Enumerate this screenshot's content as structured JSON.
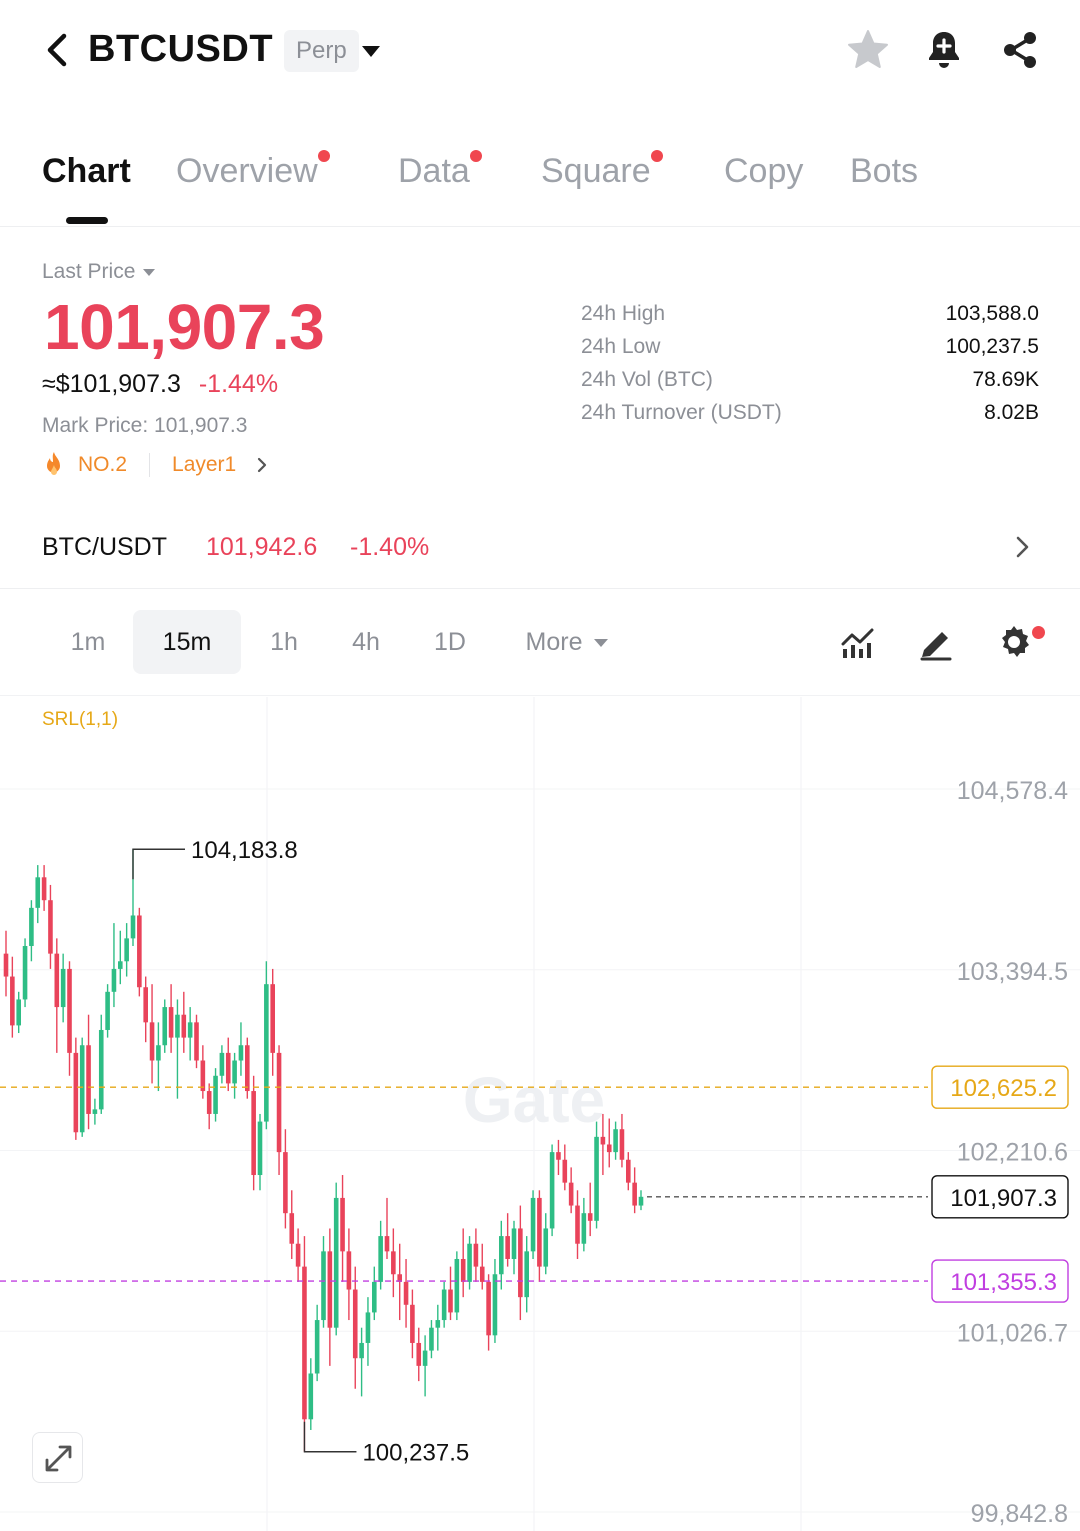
{
  "header": {
    "symbol": "BTCUSDT",
    "badge": "Perp",
    "icons": [
      "back-icon",
      "chevron-down-icon",
      "star-icon",
      "bell-plus-icon",
      "share-icon"
    ]
  },
  "tabs": [
    {
      "label": "Chart",
      "active": true,
      "dot": false
    },
    {
      "label": "Overview",
      "active": false,
      "dot": true
    },
    {
      "label": "Data",
      "active": false,
      "dot": true
    },
    {
      "label": "Square",
      "active": false,
      "dot": true
    },
    {
      "label": "Copy",
      "active": false,
      "dot": false
    },
    {
      "label": "Bots",
      "active": false,
      "dot": false
    }
  ],
  "ticker": {
    "last_price_label": "Last Price",
    "last_price": "101,907.3",
    "fiat_price": "≈$101,907.3",
    "change": "-1.44%",
    "mark_price": "Mark Price: 101,907.3",
    "rank": "NO.2",
    "sector": "Layer1",
    "stats": [
      {
        "label": "24h High",
        "value": "103,588.0"
      },
      {
        "label": "24h Low",
        "value": "100,237.5"
      },
      {
        "label": "24h Vol (BTC)",
        "value": "78.69K"
      },
      {
        "label": "24h Turnover (USDT)",
        "value": "8.02B"
      }
    ]
  },
  "spot": {
    "name": "BTC/USDT",
    "price": "101,942.6",
    "change": "-1.40%"
  },
  "intervals": {
    "items": [
      "1m",
      "15m",
      "1h",
      "4h",
      "1D"
    ],
    "active": "15m",
    "more_label": "More"
  },
  "colors": {
    "up": "#2ebd85",
    "down": "#e9435a",
    "accent_yellow": "#e6a817",
    "accent_purple": "#c03ee0"
  },
  "chart_data": {
    "type": "candlestick",
    "indicator_label": "SRL(1,1)",
    "watermark": "Gate",
    "interval": "15m",
    "y_ticks": [
      104578.4,
      103394.5,
      102210.6,
      101026.7,
      99842.8
    ],
    "y_tick_labels": [
      "104,578.4",
      "103,394.5",
      "102,210.6",
      "101,026.7",
      "99,842.8"
    ],
    "ylim": [
      99842.8,
      104578.4
    ],
    "high_marker": {
      "value": 104183.8,
      "label": "104,183.8"
    },
    "low_marker": {
      "value": 100237.5,
      "label": "100,237.5"
    },
    "price_lines": [
      {
        "value": 102625.2,
        "label": "102,625.2",
        "color": "#e6a817",
        "style": "dashed"
      },
      {
        "value": 101907.3,
        "label": "101,907.3",
        "color": "#111111",
        "style": "current"
      },
      {
        "value": 101355.3,
        "label": "101,355.3",
        "color": "#c03ee0",
        "style": "dashed"
      }
    ],
    "candles": [
      {
        "o": 103500,
        "h": 103650,
        "l": 103220,
        "c": 103350
      },
      {
        "o": 103350,
        "h": 103480,
        "l": 102950,
        "c": 103030
      },
      {
        "o": 103030,
        "h": 103250,
        "l": 102980,
        "c": 103200
      },
      {
        "o": 103200,
        "h": 103600,
        "l": 103150,
        "c": 103550
      },
      {
        "o": 103550,
        "h": 103850,
        "l": 103450,
        "c": 103800
      },
      {
        "o": 103800,
        "h": 104080,
        "l": 103700,
        "c": 104000
      },
      {
        "o": 104000,
        "h": 104080,
        "l": 103780,
        "c": 103850
      },
      {
        "o": 103850,
        "h": 103950,
        "l": 103400,
        "c": 103500
      },
      {
        "o": 103500,
        "h": 103600,
        "l": 102850,
        "c": 103150
      },
      {
        "o": 103150,
        "h": 103500,
        "l": 103050,
        "c": 103400
      },
      {
        "o": 103400,
        "h": 103450,
        "l": 102700,
        "c": 102850
      },
      {
        "o": 102850,
        "h": 102950,
        "l": 102280,
        "c": 102330
      },
      {
        "o": 102330,
        "h": 102950,
        "l": 102300,
        "c": 102900
      },
      {
        "o": 102900,
        "h": 103100,
        "l": 102350,
        "c": 102450
      },
      {
        "o": 102450,
        "h": 102550,
        "l": 102380,
        "c": 102480
      },
      {
        "o": 102480,
        "h": 103100,
        "l": 102450,
        "c": 103000
      },
      {
        "o": 103000,
        "h": 103300,
        "l": 102950,
        "c": 103250
      },
      {
        "o": 103250,
        "h": 103700,
        "l": 103150,
        "c": 103400
      },
      {
        "o": 103400,
        "h": 103650,
        "l": 103300,
        "c": 103450
      },
      {
        "o": 103450,
        "h": 103700,
        "l": 103350,
        "c": 103600
      },
      {
        "o": 103600,
        "h": 104183.8,
        "l": 103550,
        "c": 103750
      },
      {
        "o": 103750,
        "h": 103800,
        "l": 103220,
        "c": 103280
      },
      {
        "o": 103280,
        "h": 103350,
        "l": 102920,
        "c": 103050
      },
      {
        "o": 103050,
        "h": 103300,
        "l": 102650,
        "c": 102800
      },
      {
        "o": 102800,
        "h": 103050,
        "l": 102600,
        "c": 102900
      },
      {
        "o": 102900,
        "h": 103200,
        "l": 102850,
        "c": 103150
      },
      {
        "o": 103150,
        "h": 103300,
        "l": 102850,
        "c": 102950
      },
      {
        "o": 102950,
        "h": 103200,
        "l": 102550,
        "c": 103100
      },
      {
        "o": 103100,
        "h": 103250,
        "l": 102850,
        "c": 102950
      },
      {
        "o": 102950,
        "h": 103150,
        "l": 102800,
        "c": 103050
      },
      {
        "o": 103050,
        "h": 103100,
        "l": 102750,
        "c": 102800
      },
      {
        "o": 102800,
        "h": 102900,
        "l": 102550,
        "c": 102600
      },
      {
        "o": 102600,
        "h": 102650,
        "l": 102350,
        "c": 102450
      },
      {
        "o": 102450,
        "h": 102750,
        "l": 102400,
        "c": 102700
      },
      {
        "o": 102700,
        "h": 102900,
        "l": 102650,
        "c": 102850
      },
      {
        "o": 102850,
        "h": 102950,
        "l": 102600,
        "c": 102650
      },
      {
        "o": 102650,
        "h": 102850,
        "l": 102550,
        "c": 102800
      },
      {
        "o": 102800,
        "h": 103050,
        "l": 102700,
        "c": 102900
      },
      {
        "o": 102900,
        "h": 102950,
        "l": 102550,
        "c": 102600
      },
      {
        "o": 102600,
        "h": 102700,
        "l": 101950,
        "c": 102050
      },
      {
        "o": 102050,
        "h": 102450,
        "l": 101950,
        "c": 102400
      },
      {
        "o": 102400,
        "h": 103450,
        "l": 102350,
        "c": 103300
      },
      {
        "o": 103300,
        "h": 103400,
        "l": 102700,
        "c": 102850
      },
      {
        "o": 102850,
        "h": 102900,
        "l": 102050,
        "c": 102200
      },
      {
        "o": 102200,
        "h": 102350,
        "l": 101700,
        "c": 101800
      },
      {
        "o": 101800,
        "h": 101950,
        "l": 101500,
        "c": 101600
      },
      {
        "o": 101600,
        "h": 101700,
        "l": 101350,
        "c": 101450
      },
      {
        "o": 101450,
        "h": 101650,
        "l": 100237.5,
        "c": 100450
      },
      {
        "o": 100450,
        "h": 100850,
        "l": 100380,
        "c": 100750
      },
      {
        "o": 100750,
        "h": 101200,
        "l": 100700,
        "c": 101100
      },
      {
        "o": 101100,
        "h": 101650,
        "l": 101050,
        "c": 101550
      },
      {
        "o": 101550,
        "h": 101700,
        "l": 100800,
        "c": 101050
      },
      {
        "o": 101050,
        "h": 102000,
        "l": 101000,
        "c": 101900
      },
      {
        "o": 101900,
        "h": 102050,
        "l": 101350,
        "c": 101550
      },
      {
        "o": 101550,
        "h": 101700,
        "l": 101100,
        "c": 101300
      },
      {
        "o": 101300,
        "h": 101450,
        "l": 100650,
        "c": 100850
      },
      {
        "o": 100850,
        "h": 101050,
        "l": 100600,
        "c": 100950
      },
      {
        "o": 100950,
        "h": 101250,
        "l": 100800,
        "c": 101150
      },
      {
        "o": 101150,
        "h": 101450,
        "l": 101100,
        "c": 101350
      },
      {
        "o": 101350,
        "h": 101750,
        "l": 101300,
        "c": 101650
      },
      {
        "o": 101650,
        "h": 101900,
        "l": 101500,
        "c": 101550
      },
      {
        "o": 101550,
        "h": 101700,
        "l": 101250,
        "c": 101400
      },
      {
        "o": 101400,
        "h": 101600,
        "l": 101100,
        "c": 101350
      },
      {
        "o": 101350,
        "h": 101500,
        "l": 101050,
        "c": 101200
      },
      {
        "o": 101200,
        "h": 101300,
        "l": 100850,
        "c": 100950
      },
      {
        "o": 100950,
        "h": 101050,
        "l": 100700,
        "c": 100800
      },
      {
        "o": 100800,
        "h": 101000,
        "l": 100600,
        "c": 100900
      },
      {
        "o": 100900,
        "h": 101100,
        "l": 100850,
        "c": 101050
      },
      {
        "o": 101050,
        "h": 101200,
        "l": 100900,
        "c": 101100
      },
      {
        "o": 101100,
        "h": 101350,
        "l": 101050,
        "c": 101300
      },
      {
        "o": 101300,
        "h": 101450,
        "l": 101100,
        "c": 101150
      },
      {
        "o": 101150,
        "h": 101550,
        "l": 101100,
        "c": 101500
      },
      {
        "o": 101500,
        "h": 101700,
        "l": 101250,
        "c": 101350
      },
      {
        "o": 101350,
        "h": 101650,
        "l": 101300,
        "c": 101600
      },
      {
        "o": 101600,
        "h": 101700,
        "l": 101350,
        "c": 101450
      },
      {
        "o": 101450,
        "h": 101600,
        "l": 101300,
        "c": 101350
      },
      {
        "o": 101350,
        "h": 101400,
        "l": 100900,
        "c": 101000
      },
      {
        "o": 101000,
        "h": 101500,
        "l": 100950,
        "c": 101400
      },
      {
        "o": 101400,
        "h": 101750,
        "l": 101300,
        "c": 101650
      },
      {
        "o": 101650,
        "h": 101800,
        "l": 101450,
        "c": 101500
      },
      {
        "o": 101500,
        "h": 101750,
        "l": 101400,
        "c": 101700
      },
      {
        "o": 101700,
        "h": 101850,
        "l": 101100,
        "c": 101250
      },
      {
        "o": 101250,
        "h": 101650,
        "l": 101150,
        "c": 101550
      },
      {
        "o": 101550,
        "h": 101950,
        "l": 101500,
        "c": 101900
      },
      {
        "o": 101900,
        "h": 101950,
        "l": 101350,
        "c": 101450
      },
      {
        "o": 101450,
        "h": 101800,
        "l": 101400,
        "c": 101700
      },
      {
        "o": 101700,
        "h": 102250,
        "l": 101650,
        "c": 102200
      },
      {
        "o": 102200,
        "h": 102280,
        "l": 102050,
        "c": 102150
      },
      {
        "o": 102150,
        "h": 102250,
        "l": 101950,
        "c": 102000
      },
      {
        "o": 102000,
        "h": 102100,
        "l": 101800,
        "c": 101850
      },
      {
        "o": 101850,
        "h": 101950,
        "l": 101500,
        "c": 101600
      },
      {
        "o": 101600,
        "h": 101900,
        "l": 101550,
        "c": 101800
      },
      {
        "o": 101800,
        "h": 102000,
        "l": 101650,
        "c": 101750
      },
      {
        "o": 101750,
        "h": 102400,
        "l": 101700,
        "c": 102300
      },
      {
        "o": 102300,
        "h": 102450,
        "l": 102050,
        "c": 102250
      },
      {
        "o": 102250,
        "h": 102420,
        "l": 102100,
        "c": 102200
      },
      {
        "o": 102200,
        "h": 102400,
        "l": 102150,
        "c": 102350
      },
      {
        "o": 102350,
        "h": 102450,
        "l": 102100,
        "c": 102150
      },
      {
        "o": 102150,
        "h": 102200,
        "l": 101950,
        "c": 102000
      },
      {
        "o": 102000,
        "h": 102100,
        "l": 101800,
        "c": 101850
      },
      {
        "o": 101850,
        "h": 101950,
        "l": 101820,
        "c": 101907.3
      }
    ]
  },
  "controls": {
    "expand_icon": "expand-icon",
    "tool_icons": [
      "indicators-icon",
      "draw-icon",
      "settings-icon"
    ]
  }
}
